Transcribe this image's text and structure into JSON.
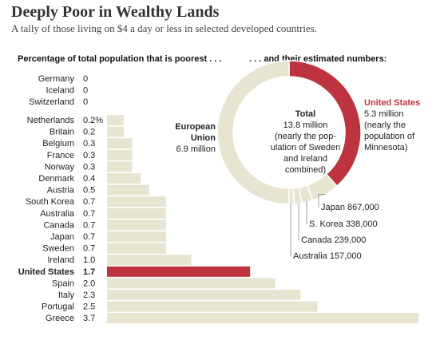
{
  "title": "Deeply Poor in Wealthy Lands",
  "subtitle": "A tally of those living on $4 a day or less in selected developed countries.",
  "left_heading": "Percentage of total population that is poorest . . .",
  "right_heading": ". . . and their estimated numbers:",
  "colors": {
    "bar": "#e8e4d2",
    "highlight": "#be3340",
    "donut_other": "#e8e4d2",
    "donut_us": "#be3340",
    "text_highlight": "#be3340"
  },
  "chart_data": [
    {
      "type": "bar",
      "orientation": "horizontal",
      "categories": [
        "Germany",
        "Iceland",
        "Switzerland",
        "Netherlands",
        "Britain",
        "Belgium",
        "France",
        "Norway",
        "Denmark",
        "Austria",
        "South Korea",
        "Australia",
        "Canada",
        "Japan",
        "Sweden",
        "Ireland",
        "United States",
        "Spain",
        "Italy",
        "Portugal",
        "Greece"
      ],
      "value_labels": [
        "0",
        "0",
        "0",
        "0.2%",
        "0.2",
        "0.3",
        "0.3",
        "0.3",
        "0.4",
        "0.5",
        "0.7",
        "0.7",
        "0.7",
        "0.7",
        "0.7",
        "1.0",
        "1.7",
        "2.0",
        "2.3",
        "2.5",
        "3.7"
      ],
      "values": [
        0,
        0,
        0,
        0.2,
        0.2,
        0.3,
        0.3,
        0.3,
        0.4,
        0.5,
        0.7,
        0.7,
        0.7,
        0.7,
        0.7,
        1.0,
        1.7,
        2.0,
        2.3,
        2.5,
        3.7
      ],
      "highlight": "United States",
      "title": "Percentage of total population that is poorest . . .",
      "xlim": [
        0,
        3.7
      ],
      "grid": false
    },
    {
      "type": "pie",
      "style": "donut",
      "title": ". . . and their estimated numbers:",
      "center_text": {
        "heading": "Total",
        "lines": [
          "13.8 million",
          "(nearly the pop-",
          "ulation of Sweden",
          "and Ireland",
          "combined)"
        ]
      },
      "slices": [
        {
          "name": "United States",
          "value": 5.3,
          "label_lines": [
            "5.3 million",
            "(nearly the",
            "population of",
            "Minnesota)"
          ]
        },
        {
          "name": "Japan",
          "value": 0.867,
          "label": "Japan 867,000"
        },
        {
          "name": "S. Korea",
          "value": 0.338,
          "label": "S. Korea 338,000"
        },
        {
          "name": "Canada",
          "value": 0.239,
          "label": "Canada 239,000"
        },
        {
          "name": "Australia",
          "value": 0.157,
          "label": "Australia 157,000"
        },
        {
          "name": "European Union",
          "value": 6.9,
          "label": "6.9 million"
        }
      ]
    }
  ]
}
